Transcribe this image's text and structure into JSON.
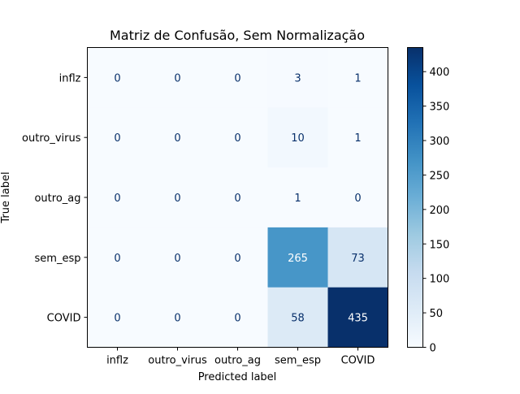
{
  "chart_data": {
    "type": "heatmap",
    "title": "Matriz de Confusão, Sem Normalização",
    "xlabel": "Predicted label",
    "ylabel": "True label",
    "x_categories": [
      "inflz",
      "outro_virus",
      "outro_ag",
      "sem_esp",
      "COVID"
    ],
    "y_categories": [
      "inflz",
      "outro_virus",
      "outro_ag",
      "sem_esp",
      "COVID"
    ],
    "matrix": [
      [
        0,
        0,
        0,
        3,
        1
      ],
      [
        0,
        0,
        0,
        10,
        1
      ],
      [
        0,
        0,
        0,
        1,
        0
      ],
      [
        0,
        0,
        0,
        265,
        73
      ],
      [
        0,
        0,
        0,
        58,
        435
      ]
    ],
    "colormap": "Blues",
    "vmin": 0,
    "vmax": 435,
    "colorbar_ticks": [
      0,
      50,
      100,
      150,
      200,
      250,
      300,
      350,
      400
    ],
    "colors": {
      "low": "#f7fbff",
      "high": "#08306b",
      "text_dark": "#08306b",
      "text_light": "#ffffff"
    }
  }
}
